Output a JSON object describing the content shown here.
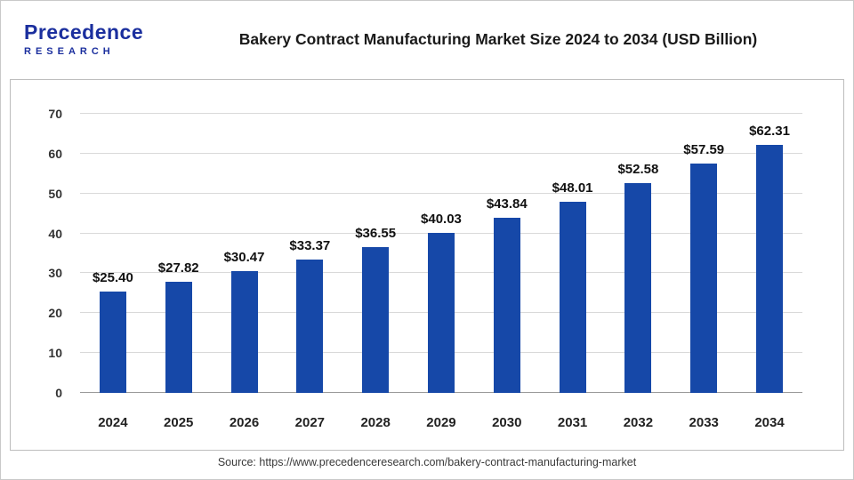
{
  "header": {
    "logo_line1": "Precedence",
    "logo_line2": "RESEARCH",
    "title": "Bakery Contract Manufacturing Market Size 2024 to 2034 (USD Billion)"
  },
  "chart_data": {
    "type": "bar",
    "title": "Bakery Contract Manufacturing Market Size 2024 to 2034 (USD Billion)",
    "categories": [
      "2024",
      "2025",
      "2026",
      "2027",
      "2028",
      "2029",
      "2030",
      "2031",
      "2032",
      "2033",
      "2034"
    ],
    "values": [
      25.4,
      27.82,
      30.47,
      33.37,
      36.55,
      40.03,
      43.84,
      48.01,
      52.58,
      57.59,
      62.31
    ],
    "value_labels": [
      "$25.40",
      "$27.82",
      "$30.47",
      "$33.37",
      "$36.55",
      "$40.03",
      "$43.84",
      "$48.01",
      "$52.58",
      "$57.59",
      "$62.31"
    ],
    "xlabel": "",
    "ylabel": "",
    "ylim": [
      0,
      70
    ],
    "ytick_step": 10,
    "grid": true,
    "legend": "none",
    "bar_color": "#1648A8"
  },
  "footer": {
    "source": "Source: https://www.precedenceresearch.com/bakery-contract-manufacturing-market"
  },
  "colors": {
    "bar": "#1648A8",
    "grid": "#d9d9d9",
    "axis": "#9a9a9a",
    "logo_blue": "#1B2F9E",
    "title_text": "#1a1a1a"
  }
}
